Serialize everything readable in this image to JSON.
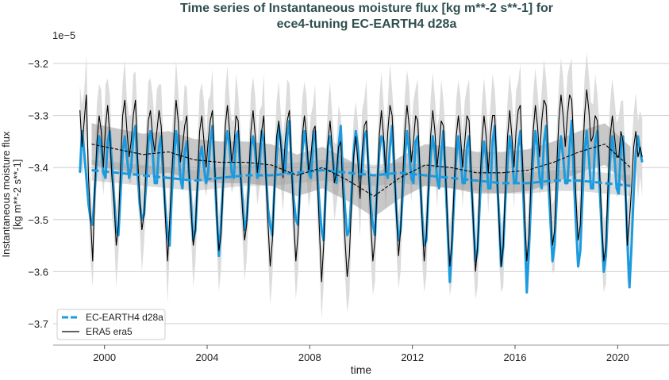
{
  "chart_data": {
    "type": "line",
    "title_line1": "Time series of Instantaneous moisture flux [kg m**-2 s**-1] for",
    "title_line2": "ece4-tuning EC-EARTH4 d28a",
    "xlabel": "time",
    "ylabel_line1": "Instantaneous moisture flux",
    "ylabel_line2": "[kg m**-2 s**-1]",
    "y_offset_label": "1e−5",
    "xlim": [
      1998.0,
      2022.0
    ],
    "ylim": [
      -3.75,
      -3.16
    ],
    "xticks": [
      2000,
      2004,
      2008,
      2012,
      2016,
      2020
    ],
    "xtick_labels": [
      "2000",
      "2004",
      "2008",
      "2012",
      "2016",
      "2020"
    ],
    "yticks": [
      -3.2,
      -3.3,
      -3.4,
      -3.5,
      -3.6,
      -3.7
    ],
    "ytick_labels": [
      "−3.2",
      "−3.3",
      "−3.4",
      "−3.5",
      "−3.6",
      "−3.7"
    ],
    "grid": "horizontal",
    "legend_placement": "lower-left",
    "start_year": 1999,
    "colors": {
      "ece": "#1a9be0",
      "era5": "#000000",
      "band_light": "#dcdcdc",
      "band_dark": "#9a9a9a",
      "title": "#2f4f4f"
    },
    "era5_spread_halfwidth": 0.08,
    "series": [
      {
        "name": "EC-EARTH4 d28a",
        "style": "monthly solid, annual mean dashed",
        "monthly": [
          [
            -3.41,
            -3.33,
            -3.37,
            -3.42,
            -3.47,
            -3.5,
            -3.51,
            -3.44,
            -3.38,
            -3.34,
            -3.36,
            -3.41
          ],
          [
            -3.42,
            -3.35,
            -3.33,
            -3.4,
            -3.46,
            -3.52,
            -3.53,
            -3.45,
            -3.37,
            -3.34,
            -3.38,
            -3.42
          ],
          [
            -3.4,
            -3.34,
            -3.32,
            -3.41,
            -3.47,
            -3.5,
            -3.49,
            -3.43,
            -3.35,
            -3.33,
            -3.37,
            -3.43
          ],
          [
            -3.43,
            -3.36,
            -3.34,
            -3.42,
            -3.48,
            -3.53,
            -3.55,
            -3.45,
            -3.38,
            -3.33,
            -3.36,
            -3.42
          ],
          [
            -3.44,
            -3.37,
            -3.35,
            -3.41,
            -3.47,
            -3.54,
            -3.52,
            -3.44,
            -3.38,
            -3.36,
            -3.4,
            -3.43
          ],
          [
            -3.41,
            -3.35,
            -3.32,
            -3.4,
            -3.49,
            -3.57,
            -3.51,
            -3.43,
            -3.36,
            -3.33,
            -3.36,
            -3.41
          ],
          [
            -3.42,
            -3.34,
            -3.33,
            -3.41,
            -3.46,
            -3.52,
            -3.5,
            -3.44,
            -3.36,
            -3.34,
            -3.37,
            -3.42
          ],
          [
            -3.4,
            -3.33,
            -3.35,
            -3.41,
            -3.48,
            -3.51,
            -3.53,
            -3.44,
            -3.38,
            -3.32,
            -3.35,
            -3.4
          ],
          [
            -3.41,
            -3.34,
            -3.31,
            -3.4,
            -3.46,
            -3.5,
            -3.51,
            -3.43,
            -3.37,
            -3.33,
            -3.36,
            -3.41
          ],
          [
            -3.42,
            -3.35,
            -3.33,
            -3.41,
            -3.47,
            -3.52,
            -3.54,
            -3.44,
            -3.36,
            -3.34,
            -3.37,
            -3.41
          ],
          [
            -3.43,
            -3.36,
            -3.32,
            -3.42,
            -3.48,
            -3.53,
            -3.52,
            -3.45,
            -3.37,
            -3.33,
            -3.36,
            -3.42
          ],
          [
            -3.41,
            -3.34,
            -3.33,
            -3.4,
            -3.47,
            -3.51,
            -3.53,
            -3.44,
            -3.37,
            -3.34,
            -3.35,
            -3.41
          ],
          [
            -3.42,
            -3.36,
            -3.32,
            -3.41,
            -3.48,
            -3.54,
            -3.52,
            -3.45,
            -3.38,
            -3.33,
            -3.37,
            -3.42
          ],
          [
            -3.43,
            -3.35,
            -3.34,
            -3.42,
            -3.49,
            -3.55,
            -3.54,
            -3.45,
            -3.38,
            -3.34,
            -3.37,
            -3.42
          ],
          [
            -3.44,
            -3.37,
            -3.33,
            -3.42,
            -3.52,
            -3.62,
            -3.55,
            -3.46,
            -3.38,
            -3.34,
            -3.38,
            -3.43
          ],
          [
            -3.43,
            -3.36,
            -3.34,
            -3.43,
            -3.5,
            -3.58,
            -3.56,
            -3.47,
            -3.39,
            -3.35,
            -3.38,
            -3.44
          ],
          [
            -3.44,
            -3.35,
            -3.32,
            -3.42,
            -3.49,
            -3.59,
            -3.55,
            -3.46,
            -3.39,
            -3.34,
            -3.37,
            -3.43
          ],
          [
            -3.43,
            -3.36,
            -3.33,
            -3.41,
            -3.52,
            -3.64,
            -3.56,
            -3.46,
            -3.38,
            -3.33,
            -3.36,
            -3.42
          ],
          [
            -3.44,
            -3.35,
            -3.32,
            -3.42,
            -3.5,
            -3.58,
            -3.55,
            -3.46,
            -3.38,
            -3.34,
            -3.38,
            -3.43
          ],
          [
            -3.43,
            -3.36,
            -3.31,
            -3.42,
            -3.51,
            -3.59,
            -3.56,
            -3.46,
            -3.37,
            -3.33,
            -3.38,
            -3.44
          ],
          [
            -3.44,
            -3.35,
            -3.33,
            -3.43,
            -3.52,
            -3.6,
            -3.57,
            -3.47,
            -3.38,
            -3.34,
            -3.38,
            -3.44
          ],
          [
            -3.45,
            -3.36,
            -3.34,
            -3.43,
            -3.54,
            -3.63,
            -3.55,
            -3.45,
            -3.37,
            -3.34,
            -3.37,
            -3.39
          ]
        ],
        "annual_mean": [
          -3.405,
          -3.41,
          -3.415,
          -3.42,
          -3.425,
          -3.42,
          -3.415,
          -3.415,
          -3.41,
          -3.405,
          -3.41,
          -3.415,
          -3.41,
          -3.415,
          -3.42,
          -3.425,
          -3.43,
          -3.43,
          -3.425,
          -3.425,
          -3.43,
          -3.435
        ]
      },
      {
        "name": "ERA5 era5",
        "style": "monthly solid, annual mean dashed",
        "monthly": [
          [
            -3.29,
            -3.36,
            -3.31,
            -3.26,
            -3.42,
            -3.5,
            -3.58,
            -3.44,
            -3.35,
            -3.3,
            -3.33,
            -3.4
          ],
          [
            -3.32,
            -3.28,
            -3.34,
            -3.42,
            -3.47,
            -3.55,
            -3.51,
            -3.4,
            -3.3,
            -3.27,
            -3.33,
            -3.38
          ],
          [
            -3.35,
            -3.3,
            -3.27,
            -3.38,
            -3.46,
            -3.52,
            -3.49,
            -3.39,
            -3.31,
            -3.29,
            -3.34,
            -3.37
          ],
          [
            -3.33,
            -3.29,
            -3.32,
            -3.4,
            -3.5,
            -3.58,
            -3.5,
            -3.41,
            -3.34,
            -3.27,
            -3.31,
            -3.39
          ],
          [
            -3.36,
            -3.32,
            -3.3,
            -3.41,
            -3.48,
            -3.55,
            -3.52,
            -3.42,
            -3.33,
            -3.3,
            -3.35,
            -3.4
          ],
          [
            -3.35,
            -3.31,
            -3.29,
            -3.39,
            -3.49,
            -3.56,
            -3.53,
            -3.43,
            -3.32,
            -3.28,
            -3.33,
            -3.39
          ],
          [
            -3.36,
            -3.3,
            -3.31,
            -3.4,
            -3.48,
            -3.54,
            -3.51,
            -3.42,
            -3.33,
            -3.29,
            -3.34,
            -3.41
          ],
          [
            -3.37,
            -3.33,
            -3.3,
            -3.42,
            -3.51,
            -3.59,
            -3.54,
            -3.43,
            -3.34,
            -3.31,
            -3.36,
            -3.42
          ],
          [
            -3.35,
            -3.31,
            -3.29,
            -3.4,
            -3.5,
            -3.58,
            -3.53,
            -3.43,
            -3.34,
            -3.3,
            -3.34,
            -3.41
          ],
          [
            -3.38,
            -3.33,
            -3.32,
            -3.42,
            -3.52,
            -3.62,
            -3.55,
            -3.44,
            -3.35,
            -3.31,
            -3.36,
            -3.43
          ],
          [
            -3.41,
            -3.36,
            -3.35,
            -3.45,
            -3.54,
            -3.61,
            -3.57,
            -3.47,
            -3.38,
            -3.34,
            -3.39,
            -3.46
          ],
          [
            -3.37,
            -3.32,
            -3.31,
            -3.41,
            -3.5,
            -3.58,
            -3.54,
            -3.44,
            -3.34,
            -3.29,
            -3.34,
            -3.41
          ],
          [
            -3.33,
            -3.28,
            -3.3,
            -3.39,
            -3.49,
            -3.57,
            -3.52,
            -3.42,
            -3.33,
            -3.28,
            -3.32,
            -3.39
          ],
          [
            -3.35,
            -3.3,
            -3.31,
            -3.4,
            -3.5,
            -3.58,
            -3.53,
            -3.43,
            -3.34,
            -3.29,
            -3.33,
            -3.4
          ],
          [
            -3.36,
            -3.31,
            -3.32,
            -3.41,
            -3.51,
            -3.59,
            -3.54,
            -3.44,
            -3.34,
            -3.3,
            -3.34,
            -3.4
          ],
          [
            -3.35,
            -3.3,
            -3.31,
            -3.41,
            -3.51,
            -3.6,
            -3.55,
            -3.44,
            -3.35,
            -3.3,
            -3.34,
            -3.41
          ],
          [
            -3.34,
            -3.3,
            -3.3,
            -3.4,
            -3.5,
            -3.59,
            -3.55,
            -3.43,
            -3.34,
            -3.29,
            -3.34,
            -3.4
          ],
          [
            -3.33,
            -3.29,
            -3.28,
            -3.39,
            -3.49,
            -3.58,
            -3.53,
            -3.42,
            -3.33,
            -3.28,
            -3.32,
            -3.38
          ],
          [
            -3.31,
            -3.27,
            -3.28,
            -3.37,
            -3.47,
            -3.55,
            -3.52,
            -3.4,
            -3.31,
            -3.26,
            -3.3,
            -3.36
          ],
          [
            -3.3,
            -3.26,
            -3.27,
            -3.36,
            -3.46,
            -3.54,
            -3.51,
            -3.39,
            -3.3,
            -3.25,
            -3.29,
            -3.35
          ],
          [
            -3.34,
            -3.3,
            -3.31,
            -3.4,
            -3.5,
            -3.58,
            -3.55,
            -3.43,
            -3.34,
            -3.3,
            -3.34,
            -3.38
          ],
          [
            -3.38,
            -3.33,
            -3.35,
            -3.42,
            -3.55,
            -3.5,
            -3.44,
            -3.36,
            -3.33,
            -3.38,
            -3.36,
            -3.38
          ]
        ],
        "annual_mean": [
          -3.355,
          -3.365,
          -3.375,
          -3.37,
          -3.385,
          -3.39,
          -3.39,
          -3.395,
          -3.415,
          -3.4,
          -3.425,
          -3.455,
          -3.42,
          -3.395,
          -3.4,
          -3.41,
          -3.41,
          -3.405,
          -3.39,
          -3.37,
          -3.355,
          -3.4
        ]
      }
    ]
  }
}
